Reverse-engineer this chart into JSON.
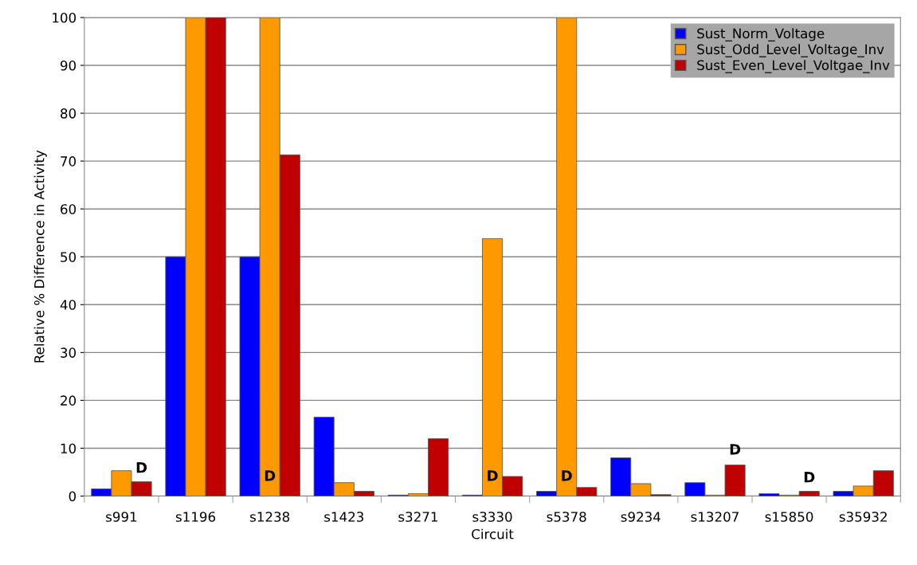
{
  "chart_data": {
    "type": "bar",
    "xlabel": "Circuit",
    "ylabel": "Relative % Difference in Activity",
    "categories": [
      "s991",
      "s1196",
      "s1238",
      "s1423",
      "s3271",
      "s3330",
      "s5378",
      "s9234",
      "s13207",
      "s15850",
      "s35932"
    ],
    "series": [
      {
        "name": "Sust_Norm_Voltage",
        "color": "#0000ff",
        "values": [
          1.5,
          50,
          50,
          16.5,
          0.2,
          0.2,
          1.0,
          8.0,
          2.8,
          0.5,
          1.0
        ]
      },
      {
        "name": "Sust_Odd_Level_Voltage_Inv",
        "color": "#ff9900",
        "values": [
          5.3,
          100,
          100,
          2.8,
          0.5,
          53.8,
          100,
          2.6,
          0.2,
          0.2,
          2.1
        ]
      },
      {
        "name": "Sust_Even_Level_Voltgae_Inv",
        "color": "#c00000",
        "values": [
          3.0,
          100,
          71.3,
          1.0,
          12.0,
          4.1,
          1.8,
          0.3,
          6.5,
          1.0,
          5.3
        ]
      }
    ],
    "annotations": [
      "D",
      "D",
      "D",
      "D",
      "D",
      "D"
    ],
    "ylim": [
      0,
      100
    ],
    "yticks": [
      0,
      10,
      20,
      30,
      40,
      50,
      60,
      70,
      80,
      90,
      100
    ],
    "grid": "y",
    "legend": "top right"
  }
}
